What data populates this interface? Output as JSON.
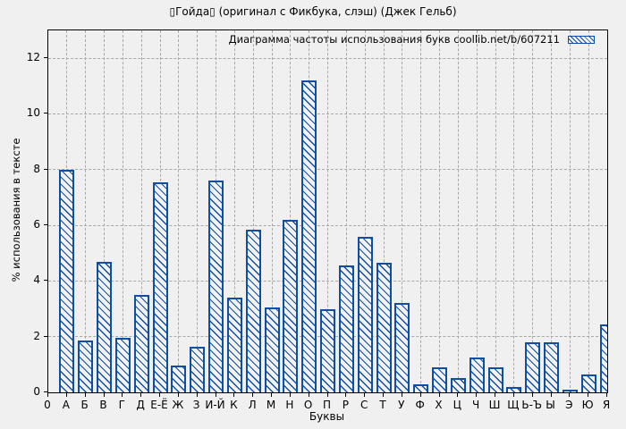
{
  "chart_data": {
    "type": "bar",
    "title": "▯Гойда▯ (оригинал с Фикбука, слэш) (Джек Гельб)",
    "legend": "Диаграмма частоты использования букв coollib.net/b/607211",
    "legend_position": "top-right",
    "xlabel": "Буквы",
    "ylabel": "% использования в тексте",
    "origin_tick_label": "0",
    "categories": [
      "А",
      "Б",
      "В",
      "Г",
      "Д",
      "Е-Ё",
      "Ж",
      "З",
      "И-Й",
      "К",
      "Л",
      "М",
      "Н",
      "О",
      "П",
      "Р",
      "С",
      "Т",
      "У",
      "Ф",
      "Х",
      "Ц",
      "Ч",
      "Ш",
      "Щ",
      "Ь-Ъ",
      "Ы",
      "Э",
      "Ю",
      "Я"
    ],
    "values": [
      8.0,
      1.85,
      4.7,
      1.95,
      3.5,
      7.55,
      0.95,
      1.65,
      7.6,
      3.4,
      5.85,
      3.05,
      6.2,
      11.2,
      3.0,
      4.55,
      5.6,
      4.65,
      3.2,
      0.3,
      0.9,
      0.5,
      1.25,
      0.9,
      0.2,
      1.8,
      1.8,
      0.1,
      0.65,
      2.45
    ],
    "yticks": [
      0,
      2,
      4,
      6,
      8,
      10,
      12
    ],
    "ylim": [
      0,
      13
    ],
    "grid": "dashed",
    "hatch": "\\",
    "colors": {
      "bar": "#0f4ea3",
      "grid": "#a8a8a8",
      "background": "#f0f0f0",
      "axis": "#000000",
      "text": "#000000"
    }
  }
}
